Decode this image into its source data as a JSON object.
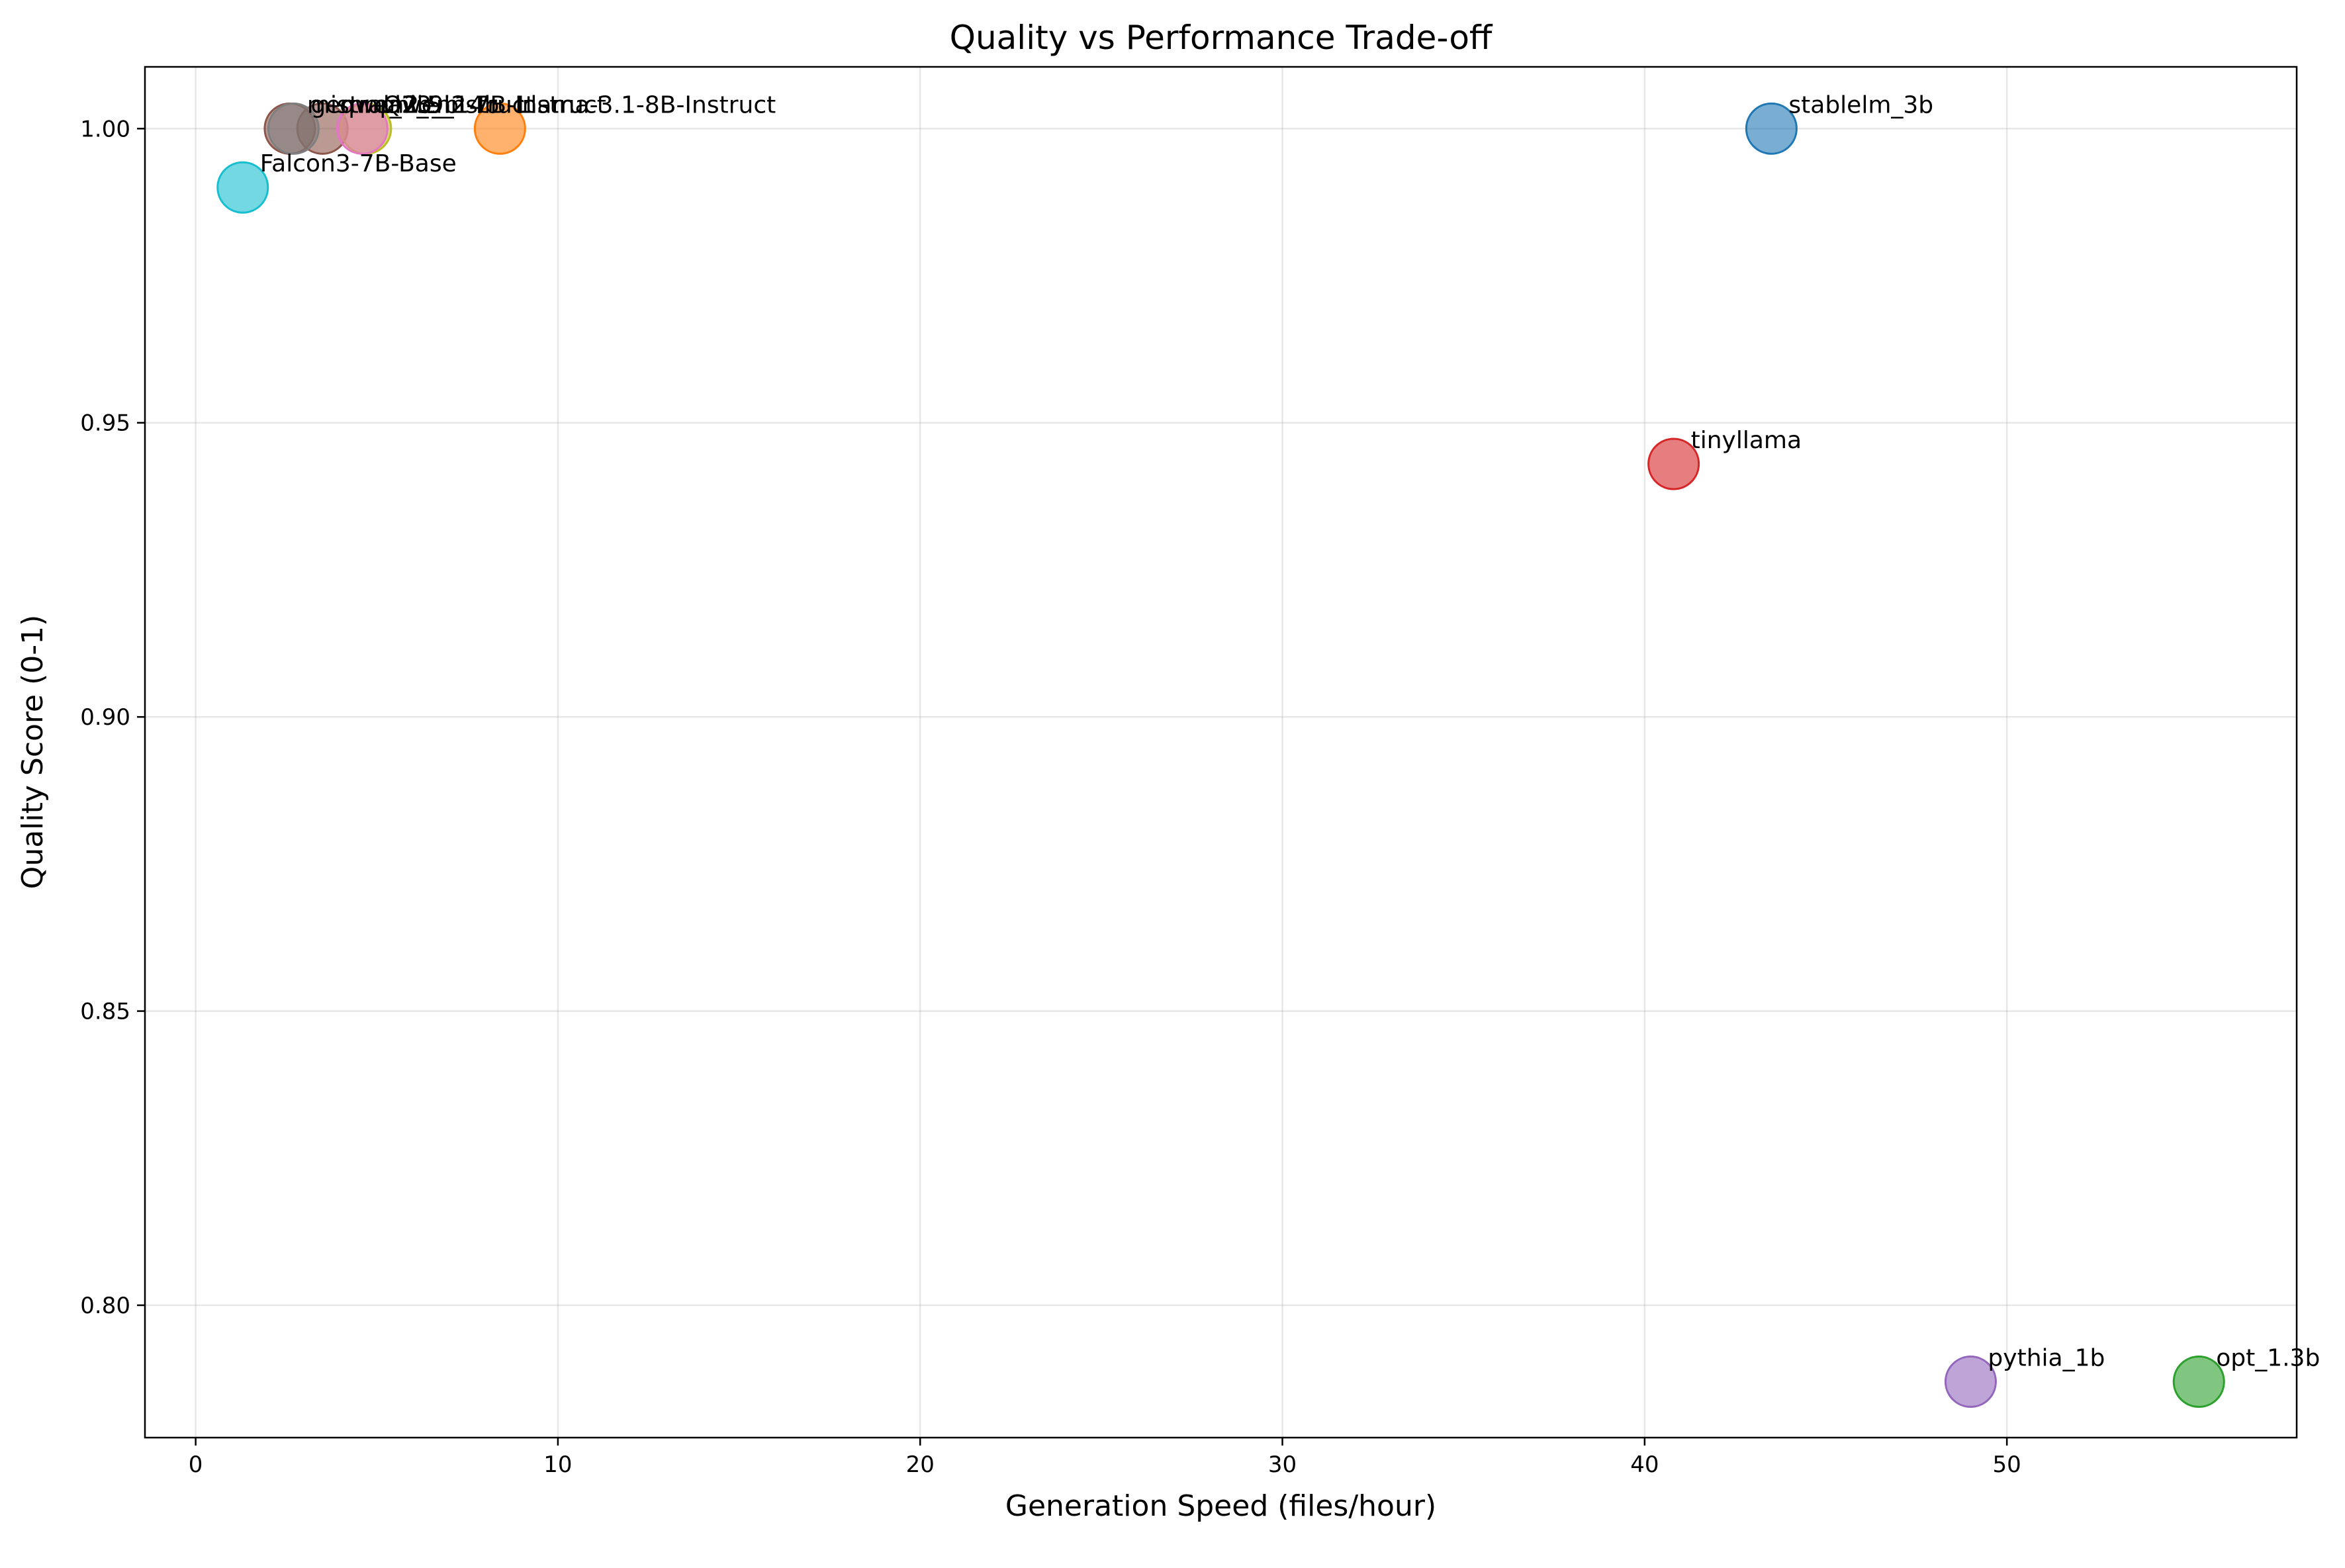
{
  "chart_data": {
    "type": "scatter",
    "title": "Quality vs Performance Trade-off",
    "xlabel": "Generation Speed (files/hour)",
    "ylabel": "Quality Score (0-1)",
    "xlim": [
      -1.4,
      58
    ],
    "ylim": [
      0.7775,
      1.0105
    ],
    "xticks": [
      0,
      10,
      20,
      30,
      40,
      50
    ],
    "yticks": [
      0.8,
      0.85,
      0.9,
      0.95,
      1.0
    ],
    "ytick_labels": [
      "0.80",
      "0.85",
      "0.90",
      "0.95",
      "1.00"
    ],
    "grid": true,
    "point_alpha": 0.6,
    "points": [
      {
        "name": "stablelm_3b",
        "x": 43.5,
        "y": 1.0,
        "color": "#1f77b4"
      },
      {
        "name": "Llama-3.1-8B-Instruct",
        "x": 8.4,
        "y": 1.0,
        "color": "#ff7f0e"
      },
      {
        "name": "opt_1.3b",
        "x": 55.3,
        "y": 0.787,
        "color": "#2ca02c"
      },
      {
        "name": "tinyllama",
        "x": 40.8,
        "y": 0.943,
        "color": "#d62728"
      },
      {
        "name": "pythia_1b",
        "x": 49.0,
        "y": 0.787,
        "color": "#9467bd"
      },
      {
        "name": "mistral_7b_instruct",
        "x": 2.6,
        "y": 1.0,
        "color": "#8c564b"
      },
      {
        "name": "qwen2.5_14b",
        "x": 3.5,
        "y": 1.0,
        "color": "#8c564b"
      },
      {
        "name": "Qwen2-7B-Instruct",
        "x": 4.7,
        "y": 1.0,
        "color": "#bcbd22"
      },
      {
        "name": "gemma2_9b",
        "x": 2.7,
        "y": 1.0,
        "color": "#7f7f7f"
      },
      {
        "name": "phi3",
        "x": 4.6,
        "y": 1.0,
        "color": "#e377c2"
      },
      {
        "name": "Falcon3-7B-Base",
        "x": 1.3,
        "y": 0.99,
        "color": "#17becf"
      }
    ]
  }
}
